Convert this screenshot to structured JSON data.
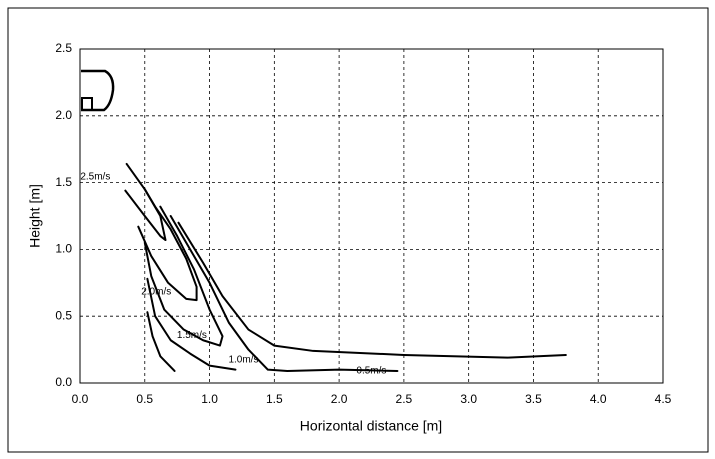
{
  "chart_data": {
    "type": "line",
    "x_label": "Horizontal distance [m]",
    "y_label": "Height [m]",
    "xlim": [
      0,
      4.5
    ],
    "ylim": [
      0,
      2.5
    ],
    "xticks": [
      {
        "value": 0,
        "label": "0.0"
      },
      {
        "value": 0.5,
        "label": "0.5"
      },
      {
        "value": 1,
        "label": "1.0"
      },
      {
        "value": 1.5,
        "label": "1.5"
      },
      {
        "value": 2,
        "label": "2.0"
      },
      {
        "value": 2.5,
        "label": "2.5"
      },
      {
        "value": 3,
        "label": "3.0"
      },
      {
        "value": 3.5,
        "label": "3.5"
      },
      {
        "value": 4,
        "label": "4.0"
      },
      {
        "value": 4.5,
        "label": "4.5"
      }
    ],
    "yticks": [
      {
        "value": 0,
        "label": "0.0"
      },
      {
        "value": 0.5,
        "label": "0.5"
      },
      {
        "value": 1,
        "label": "1.0"
      },
      {
        "value": 1.5,
        "label": "1.5"
      },
      {
        "value": 2,
        "label": "2.0"
      },
      {
        "value": 2.5,
        "label": "2.5"
      }
    ],
    "grid": true,
    "series": [
      {
        "name": "2.5m/s",
        "color": "#000000",
        "x": [
          0.36,
          0.5,
          0.62,
          0.66,
          0.62,
          0.5,
          0.35
        ],
        "values": [
          1.64,
          1.45,
          1.25,
          1.07,
          1.1,
          1.25,
          1.44
        ]
      },
      {
        "name": "2.0m/s",
        "color": "#000000",
        "x": [
          0.45,
          0.55,
          0.68,
          0.82,
          0.9,
          0.9,
          0.82,
          0.7,
          0.58,
          0.5
        ],
        "values": [
          1.17,
          0.95,
          0.75,
          0.63,
          0.62,
          0.72,
          0.93,
          1.15,
          1.32,
          1.45
        ]
      },
      {
        "name": "1.5m/s",
        "color": "#000000",
        "x": [
          0.5,
          0.55,
          0.65,
          0.8,
          0.95,
          1.08,
          1.1,
          1.0,
          0.88,
          0.75,
          0.62
        ],
        "values": [
          1.05,
          0.8,
          0.55,
          0.4,
          0.32,
          0.28,
          0.35,
          0.55,
          0.85,
          1.1,
          1.32
        ]
      },
      {
        "name": "1.0m/s",
        "color": "#000000",
        "x": [
          0.52,
          0.58,
          0.7,
          0.85,
          1.0,
          1.2
        ],
        "values": [
          0.78,
          0.5,
          0.32,
          0.22,
          0.13,
          0.1
        ]
      },
      {
        "color": "#000000",
        "x": [
          0.52,
          0.56,
          0.62,
          0.73
        ],
        "values": [
          0.53,
          0.35,
          0.2,
          0.09
        ]
      },
      {
        "name": "0.5m/s",
        "color": "#000000",
        "x": [
          0.7,
          0.85,
          1.0,
          1.15,
          1.3,
          1.45,
          1.6,
          2.0,
          2.45
        ],
        "values": [
          1.25,
          1.0,
          0.75,
          0.45,
          0.25,
          0.1,
          0.09,
          0.1,
          0.09
        ]
      },
      {
        "color": "#000000",
        "x": [
          0.76,
          0.95,
          1.1,
          1.3,
          1.5,
          1.8,
          2.5,
          3.3,
          3.75
        ],
        "values": [
          1.2,
          0.9,
          0.65,
          0.4,
          0.28,
          0.24,
          0.21,
          0.19,
          0.21
        ]
      }
    ]
  }
}
